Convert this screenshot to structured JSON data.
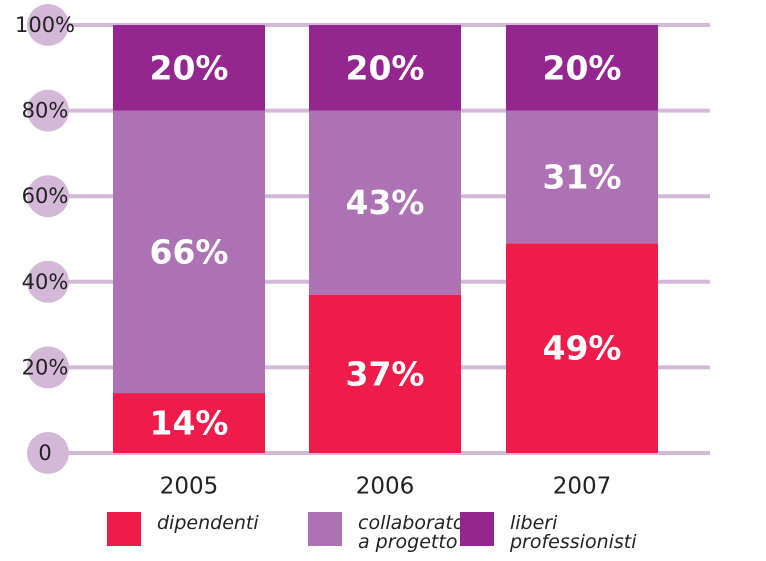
{
  "chart_data": {
    "type": "stacked-bar",
    "categories": [
      "2005",
      "2006",
      "2007"
    ],
    "series": [
      {
        "name": "dipendenti",
        "color": "#ee1c4a",
        "values": [
          14,
          37,
          49
        ],
        "value_labels": [
          "14%",
          "37%",
          "49%"
        ]
      },
      {
        "name": "collaboratori a progetto",
        "color": "#ad72b4",
        "values": [
          66,
          43,
          31
        ],
        "value_labels": [
          "66%",
          "43%",
          "31%"
        ]
      },
      {
        "name": "liberi professionisti",
        "color": "#93278f",
        "values": [
          20,
          20,
          20
        ],
        "value_labels": [
          "20%",
          "20%",
          "20%"
        ]
      }
    ],
    "ylim": [
      0,
      100
    ],
    "yticks": [
      0,
      {
        "value": 20,
        "label": "20%"
      },
      {
        "value": 40,
        "label": "40%"
      },
      {
        "value": 60,
        "label": "60%"
      },
      {
        "value": 80,
        "label": "80%"
      },
      {
        "value": 100,
        "label": "100%"
      }
    ],
    "grid": true,
    "grid_color": "#d4b8d8",
    "legend": "bottom"
  }
}
